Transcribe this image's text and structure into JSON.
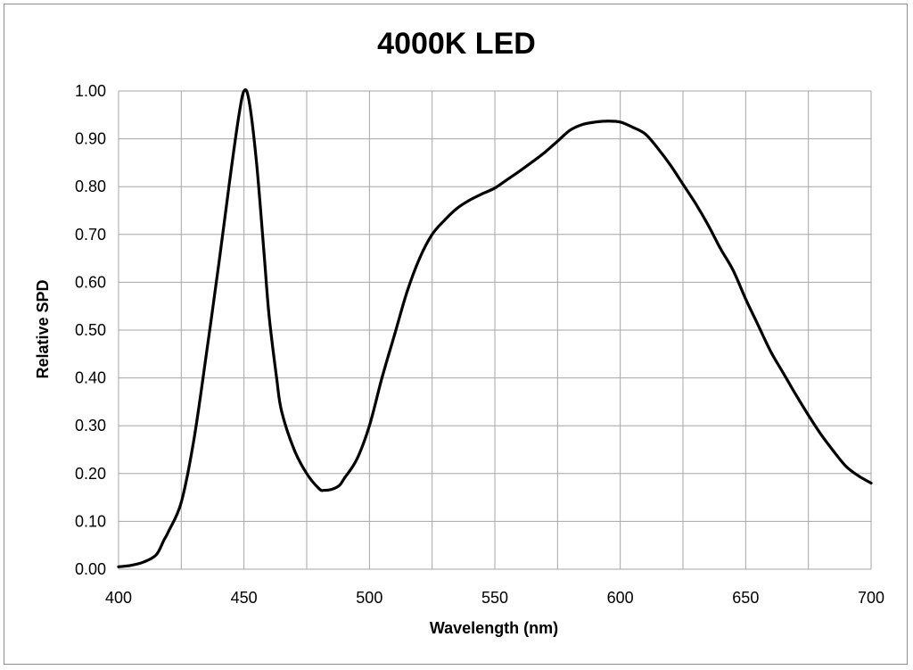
{
  "chart_data": {
    "type": "line",
    "title": "4000K LED",
    "xlabel": "Wavelength (nm)",
    "ylabel": "Relative SPD",
    "xlim": [
      400,
      700
    ],
    "ylim": [
      0,
      1
    ],
    "x_ticks": [
      "400",
      "450",
      "500",
      "550",
      "600",
      "650",
      "700"
    ],
    "y_ticks": [
      "0.00",
      "0.10",
      "0.20",
      "0.30",
      "0.40",
      "0.50",
      "0.60",
      "0.70",
      "0.80",
      "0.90",
      "1.00"
    ],
    "grid": true,
    "line_color": "#000000",
    "grid_color": "#a6a6a6",
    "series": [
      {
        "x": [
          400,
          405,
          410,
          415,
          418,
          420,
          425,
          430,
          435,
          440,
          443,
          445,
          448,
          450,
          452,
          455,
          458,
          460,
          463,
          465,
          470,
          475,
          480,
          482,
          485,
          488,
          490,
          495,
          500,
          505,
          510,
          515,
          520,
          525,
          530,
          535,
          540,
          545,
          550,
          555,
          560,
          565,
          570,
          575,
          580,
          585,
          590,
          595,
          600,
          605,
          610,
          615,
          620,
          625,
          630,
          635,
          640,
          645,
          650,
          655,
          660,
          665,
          670,
          675,
          680,
          685,
          690,
          695,
          700
        ],
        "y": [
          0.005,
          0.008,
          0.015,
          0.03,
          0.06,
          0.08,
          0.14,
          0.27,
          0.45,
          0.64,
          0.76,
          0.84,
          0.95,
          1.0,
          0.98,
          0.85,
          0.66,
          0.53,
          0.4,
          0.33,
          0.25,
          0.2,
          0.168,
          0.165,
          0.167,
          0.175,
          0.19,
          0.23,
          0.3,
          0.4,
          0.49,
          0.58,
          0.65,
          0.7,
          0.73,
          0.755,
          0.772,
          0.785,
          0.797,
          0.815,
          0.833,
          0.852,
          0.872,
          0.895,
          0.918,
          0.93,
          0.935,
          0.937,
          0.935,
          0.924,
          0.91,
          0.88,
          0.845,
          0.805,
          0.765,
          0.72,
          0.67,
          0.625,
          0.565,
          0.51,
          0.455,
          0.41,
          0.365,
          0.322,
          0.282,
          0.247,
          0.215,
          0.195,
          0.18
        ]
      }
    ]
  }
}
